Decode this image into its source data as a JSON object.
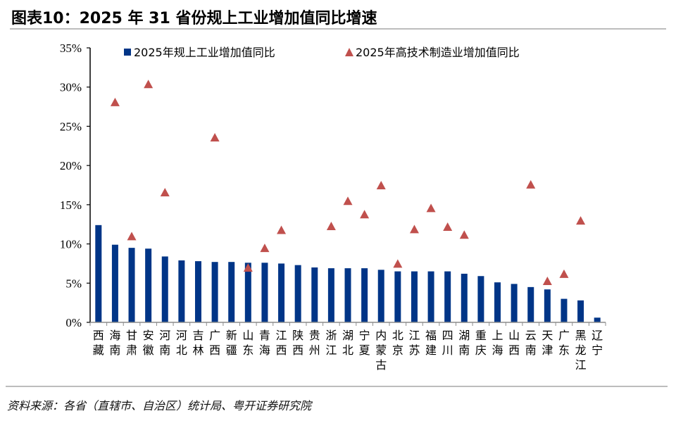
{
  "title": "图表10：2025 年 31 省份规上工业增加值同比增速",
  "source": "资料来源：各省（直辖市、自治区）统计局、粤开证券研究院",
  "colors": {
    "bar": "#003587",
    "triangle": "#C0504D",
    "axis": "#000000",
    "rule": "#BDBDBD"
  },
  "chart_data": {
    "type": "bar",
    "title": "2025 年 31 省份规上工业增加值同比增速",
    "xlabel": "",
    "ylabel": "",
    "ylim": [
      0,
      35
    ],
    "yticks": [
      "0%",
      "5%",
      "10%",
      "15%",
      "20%",
      "25%",
      "30%",
      "35%"
    ],
    "ytick_values": [
      0,
      5,
      10,
      15,
      20,
      25,
      30,
      35
    ],
    "grid": false,
    "legend_position": "top",
    "categories": [
      "西藏",
      "海南",
      "甘肃",
      "安徽",
      "河南",
      "河北",
      "吉林",
      "广西",
      "新疆",
      "山东",
      "青海",
      "江西",
      "陕西",
      "贵州",
      "浙江",
      "湖北",
      "宁夏",
      "内蒙古",
      "北京",
      "江苏",
      "福建",
      "四川",
      "湖南",
      "重庆",
      "上海",
      "山西",
      "云南",
      "天津",
      "广东",
      "黑龙江",
      "辽宁"
    ],
    "series": [
      {
        "name": "2025年规上工业增加值同比",
        "type": "bar",
        "values": [
          12.4,
          9.9,
          9.5,
          9.4,
          8.4,
          7.9,
          7.8,
          7.7,
          7.7,
          7.6,
          7.6,
          7.5,
          7.3,
          7.0,
          6.9,
          6.9,
          6.9,
          6.7,
          6.5,
          6.5,
          6.5,
          6.5,
          6.2,
          5.9,
          5.1,
          4.9,
          4.5,
          4.2,
          3.0,
          2.8,
          0.6
        ]
      },
      {
        "name": "2025年高技术制造业增加值同比",
        "type": "scatter",
        "marker": "triangle",
        "values": [
          null,
          28.1,
          11.0,
          30.4,
          16.6,
          null,
          null,
          23.6,
          null,
          7.0,
          9.5,
          11.8,
          null,
          null,
          12.3,
          15.5,
          13.8,
          17.5,
          7.5,
          11.9,
          14.6,
          12.2,
          11.2,
          null,
          null,
          null,
          17.6,
          5.3,
          6.2,
          13.0,
          null
        ]
      }
    ]
  }
}
